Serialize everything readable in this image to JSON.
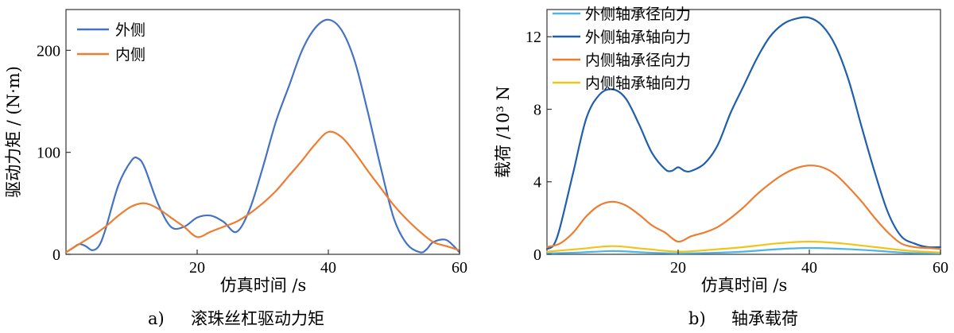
{
  "chart_data": [
    {
      "type": "line",
      "caption_prefix": "a)",
      "caption": "滚珠丝杠驱动力矩",
      "xlabel": "仿真时间 /s",
      "ylabel": "驱动力矩 / (N·m)",
      "xlim": [
        0,
        60
      ],
      "ylim": [
        0,
        240
      ],
      "xticks": [
        "20",
        "40",
        "60"
      ],
      "yticks": [
        "0",
        "100",
        "200"
      ],
      "legend_position": "top-left",
      "series": [
        {
          "name": "外侧",
          "color": "#4472C4",
          "x": [
            0,
            1,
            2,
            3,
            4,
            5,
            6,
            8,
            10,
            11,
            12,
            14,
            16,
            18,
            20,
            22,
            24,
            26,
            28,
            30,
            32,
            34,
            36,
            38,
            40,
            42,
            44,
            46,
            48,
            50,
            52,
            54,
            55,
            56,
            58,
            60
          ],
          "y": [
            2,
            6,
            10,
            8,
            4,
            8,
            24,
            68,
            92,
            94,
            85,
            50,
            27,
            27,
            36,
            38,
            32,
            22,
            44,
            85,
            130,
            165,
            200,
            222,
            230,
            220,
            190,
            140,
            85,
            35,
            10,
            2,
            5,
            12,
            14,
            2
          ]
        },
        {
          "name": "内侧",
          "color": "#ED7D31",
          "x": [
            0,
            2,
            4,
            6,
            8,
            10,
            12,
            14,
            16,
            18,
            20,
            22,
            24,
            26,
            28,
            30,
            32,
            34,
            36,
            38,
            40,
            42,
            44,
            46,
            48,
            50,
            52,
            54,
            56,
            58,
            60
          ],
          "y": [
            2,
            10,
            18,
            27,
            38,
            47,
            50,
            45,
            36,
            27,
            17,
            22,
            27,
            32,
            40,
            50,
            62,
            77,
            92,
            108,
            120,
            115,
            100,
            82,
            65,
            48,
            34,
            22,
            12,
            8,
            4
          ]
        }
      ]
    },
    {
      "type": "line",
      "caption_prefix": "b)",
      "caption": "轴承载荷",
      "xlabel": "仿真时间 /s",
      "ylabel": "载荷 /10³ N",
      "xlim": [
        0,
        60
      ],
      "ylim": [
        0,
        13.5
      ],
      "xticks": [
        "20",
        "40",
        "60"
      ],
      "yticks": [
        "0",
        "4",
        "8",
        "12"
      ],
      "legend_position": "top-left",
      "series": [
        {
          "name": "外侧轴承径向力",
          "color": "#4FB3E8",
          "x": [
            0,
            5,
            10,
            15,
            20,
            25,
            30,
            35,
            40,
            45,
            50,
            55,
            60
          ],
          "y": [
            0.05,
            0.1,
            0.18,
            0.1,
            0.05,
            0.08,
            0.15,
            0.28,
            0.35,
            0.3,
            0.2,
            0.08,
            0.05
          ]
        },
        {
          "name": "外侧轴承轴向力",
          "color": "#1F5FAD",
          "x": [
            0,
            1,
            2,
            4,
            6,
            8,
            10,
            12,
            14,
            16,
            18,
            19,
            20,
            21,
            22,
            24,
            26,
            28,
            30,
            32,
            34,
            36,
            38,
            40,
            42,
            44,
            46,
            48,
            50,
            52,
            54,
            56,
            58,
            60
          ],
          "y": [
            0.3,
            0.5,
            1.5,
            4.5,
            7.5,
            8.8,
            9.1,
            8.6,
            7.2,
            5.6,
            4.7,
            4.6,
            4.8,
            4.6,
            4.6,
            5.0,
            6.0,
            7.8,
            9.3,
            10.8,
            12.0,
            12.7,
            13.0,
            13.05,
            12.6,
            11.5,
            9.6,
            7.0,
            4.5,
            2.3,
            1.0,
            0.6,
            0.4,
            0.4
          ]
        },
        {
          "name": "内侧轴承径向力",
          "color": "#ED7D31",
          "x": [
            0,
            2,
            4,
            6,
            8,
            10,
            12,
            14,
            16,
            18,
            20,
            22,
            24,
            26,
            28,
            30,
            32,
            34,
            36,
            38,
            40,
            42,
            44,
            46,
            48,
            50,
            52,
            54,
            56,
            58,
            60
          ],
          "y": [
            0.4,
            0.6,
            1.2,
            2.1,
            2.7,
            2.9,
            2.7,
            2.2,
            1.6,
            1.2,
            0.7,
            1.0,
            1.2,
            1.5,
            2.0,
            2.6,
            3.3,
            3.9,
            4.4,
            4.75,
            4.9,
            4.8,
            4.4,
            3.7,
            2.9,
            2.0,
            1.2,
            0.6,
            0.4,
            0.35,
            0.3
          ]
        },
        {
          "name": "内侧轴承轴向力",
          "color": "#F2C318",
          "x": [
            0,
            5,
            10,
            15,
            20,
            25,
            30,
            35,
            40,
            45,
            50,
            55,
            60
          ],
          "y": [
            0.15,
            0.3,
            0.45,
            0.3,
            0.15,
            0.25,
            0.4,
            0.6,
            0.7,
            0.6,
            0.4,
            0.2,
            0.1
          ]
        }
      ]
    }
  ]
}
